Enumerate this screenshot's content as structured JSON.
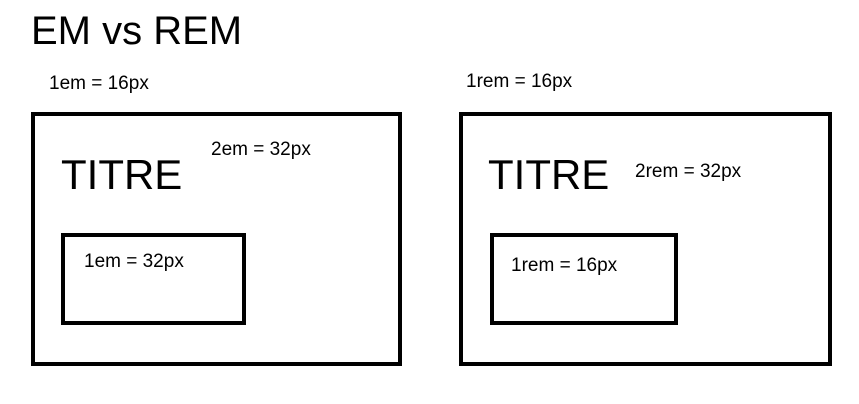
{
  "title": "EM vs REM",
  "em_panel": {
    "root_label": "1em = 16px",
    "heading_text": "TITRE",
    "heading_label": "2em = 32px",
    "child_label": "1em = 32px"
  },
  "rem_panel": {
    "root_label": "1rem = 16px",
    "heading_text": "TITRE",
    "heading_label": "2rem = 32px",
    "child_label": "1rem = 16px"
  },
  "colors": {
    "stroke": "#000000",
    "background": "#ffffff"
  }
}
